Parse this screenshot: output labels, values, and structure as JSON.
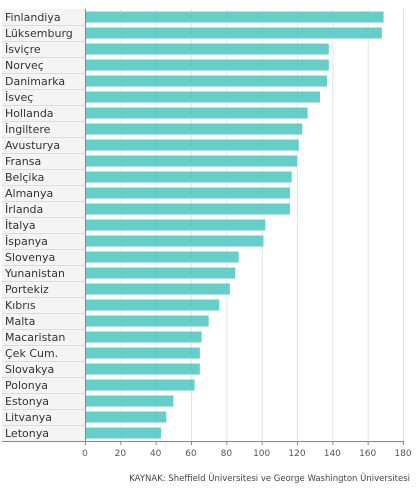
{
  "chart_data": {
    "type": "bar",
    "orientation": "horizontal",
    "categories": [
      "Finlandiya",
      "Lüksemburg",
      "İsviçre",
      "Norveç",
      "Danimarka",
      "İsveç",
      "Hollanda",
      "İngiltere",
      "Avusturya",
      "Fransa",
      "Belçika",
      "Almanya",
      "İrlanda",
      "İtalya",
      "İspanya",
      "Slovenya",
      "Yunanistan",
      "Portekiz",
      "Kıbrıs",
      "Malta",
      "Macaristan",
      "Çek Cum.",
      "Slovakya",
      "Polonya",
      "Estonya",
      "Litvanya",
      "Letonya"
    ],
    "values": [
      169,
      168,
      138,
      138,
      137,
      133,
      126,
      123,
      121,
      120,
      117,
      116,
      116,
      102,
      101,
      87,
      85,
      82,
      76,
      70,
      66,
      65,
      65,
      62,
      50,
      46,
      43
    ],
    "xlim": [
      0,
      180
    ],
    "xticks": [
      0,
      20,
      40,
      60,
      80,
      100,
      120,
      140,
      160,
      180
    ],
    "grid": true,
    "bar_color": "#66cdc8",
    "source": "KAYNAK: Sheffield Üniversitesi ve George Washington Üniversitesi"
  }
}
